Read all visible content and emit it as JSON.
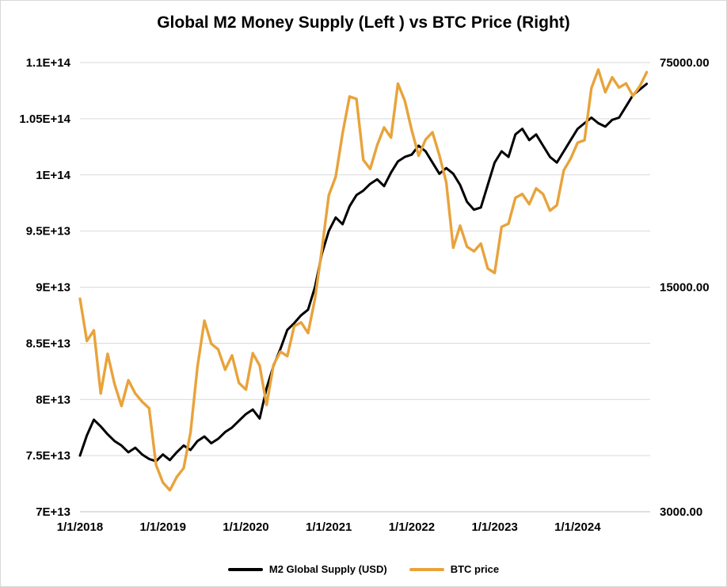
{
  "chart_data": {
    "type": "line",
    "title": "Global M2 Money Supply (Left ) vs BTC Price (Right)",
    "grid": true,
    "legend_position": "bottom",
    "colors": {
      "grid": "#D9D9D9",
      "axis_line": "#BFBFBF",
      "background": "#FFFFFF"
    },
    "x_frequency": "monthly, Jan 2018 - Nov 2024",
    "x_start_year": 2018,
    "x_range": [
      2018,
      2024.875
    ],
    "x_tick_labels": [
      "1/1/2018",
      "1/1/2019",
      "1/1/2020",
      "1/1/2021",
      "1/1/2022",
      "1/1/2023",
      "1/1/2024"
    ],
    "x_tick_years": [
      2018,
      2019,
      2020,
      2021,
      2022,
      2023,
      2024
    ],
    "left_axis": {
      "scale": "linear",
      "range": [
        70000000000000.0,
        110000000000000.0
      ],
      "tick_labels": [
        "7E+13",
        "7.5E+13",
        "8E+13",
        "8.5E+13",
        "9E+13",
        "9.5E+13",
        "1E+14",
        "1.05E+14",
        "1.1E+14"
      ],
      "tick_values": [
        70000000000000.0,
        75000000000000.0,
        80000000000000.0,
        85000000000000.0,
        90000000000000.0,
        95000000000000.0,
        100000000000000.0,
        105000000000000.0,
        110000000000000.0
      ]
    },
    "right_axis": {
      "scale": "log",
      "range": [
        3000,
        75000
      ],
      "tick_labels": [
        "3000.00",
        "15000.00",
        "75000.00"
      ],
      "tick_values": [
        3000,
        15000,
        75000
      ]
    },
    "series": [
      {
        "name": "M2 Global Supply (USD)",
        "axis": "left",
        "color": "#000000",
        "values": [
          75000000000000.0,
          76800000000000.0,
          78200000000000.0,
          77600000000000.0,
          76900000000000.0,
          76300000000000.0,
          75900000000000.0,
          75300000000000.0,
          75700000000000.0,
          75100000000000.0,
          74700000000000.0,
          74500000000000.0,
          75100000000000.0,
          74600000000000.0,
          75300000000000.0,
          75900000000000.0,
          75500000000000.0,
          76300000000000.0,
          76700000000000.0,
          76100000000000.0,
          76500000000000.0,
          77100000000000.0,
          77500000000000.0,
          78100000000000.0,
          78700000000000.0,
          79100000000000.0,
          78300000000000.0,
          81000000000000.0,
          83000000000000.0,
          84500000000000.0,
          86200000000000.0,
          86800000000000.0,
          87500000000000.0,
          88000000000000.0,
          90000000000000.0,
          93000000000000.0,
          95000000000000.0,
          96200000000000.0,
          95600000000000.0,
          97200000000000.0,
          98200000000000.0,
          98600000000000.0,
          99200000000000.0,
          99600000000000.0,
          99000000000000.0,
          100200000000000.0,
          101200000000000.0,
          101600000000000.0,
          101800000000000.0,
          102600000000000.0,
          102100000000000.0,
          101100000000000.0,
          100100000000000.0,
          100600000000000.0,
          100100000000000.0,
          99100000000000.0,
          97600000000000.0,
          96900000000000.0,
          97100000000000.0,
          99100000000000.0,
          101100000000000.0,
          102100000000000.0,
          101600000000000.0,
          103600000000000.0,
          104100000000000.0,
          103100000000000.0,
          103600000000000.0,
          102600000000000.0,
          101600000000000.0,
          101100000000000.0,
          102100000000000.0,
          103100000000000.0,
          104100000000000.0,
          104600000000000.0,
          105100000000000.0,
          104600000000000.0,
          104300000000000.0,
          104900000000000.0,
          105100000000000.0,
          106100000000000.0,
          107100000000000.0,
          107600000000000.0,
          108100000000000.0
        ]
      },
      {
        "name": "BTC price",
        "axis": "right",
        "color": "#E8A33B",
        "values": [
          13800,
          10200,
          11000,
          7000,
          9300,
          7500,
          6400,
          7700,
          7000,
          6600,
          6300,
          4200,
          3700,
          3500,
          3850,
          4100,
          5300,
          8500,
          11800,
          10000,
          9600,
          8300,
          9200,
          7550,
          7200,
          9350,
          8550,
          6450,
          8600,
          9450,
          9150,
          11350,
          11650,
          10800,
          13800,
          19700,
          29000,
          33100,
          45200,
          58800,
          57800,
          37300,
          35000,
          41500,
          47100,
          43800,
          64500,
          57000,
          46200,
          38500,
          43200,
          45500,
          38600,
          31800,
          19900,
          23300,
          20050,
          19400,
          20500,
          17150,
          16600,
          23100,
          23650,
          28450,
          29250,
          27200,
          30450,
          29250,
          25950,
          27000,
          34650,
          37700,
          42250,
          43000,
          62500,
          71300,
          60650,
          67500,
          62700,
          64600,
          59100,
          63300,
          70000
        ]
      }
    ]
  }
}
